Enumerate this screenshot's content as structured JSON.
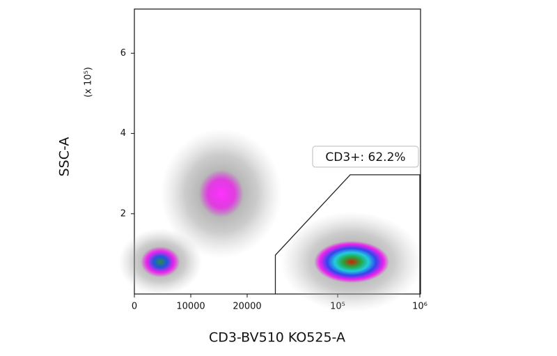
{
  "chart_data": {
    "type": "density",
    "x_label": "CD3-BV510 KO525-A",
    "y_label": "SSC-A",
    "y_multiplier": "(x 10⁵)",
    "xscale": "biexponential",
    "xlim": [
      0,
      1000000
    ],
    "xticks": [
      0,
      10000,
      20000,
      {
        "value": 100000,
        "label": "10⁵"
      },
      {
        "value": 1000000,
        "label": "10⁶"
      }
    ],
    "ylim": [
      0,
      7.1
    ],
    "yticks": [
      2,
      4,
      6
    ],
    "clusters": {
      "x": [
        4600,
        15400,
        148000
      ],
      "y": [
        0.8,
        2.5,
        0.8
      ]
    },
    "gate": {
      "label": "CD3+: 62.2%",
      "x": [
        25000,
        25000,
        142000,
        1000000,
        1000000
      ],
      "y": [
        0,
        0.97,
        2.97,
        2.97,
        0
      ]
    }
  }
}
